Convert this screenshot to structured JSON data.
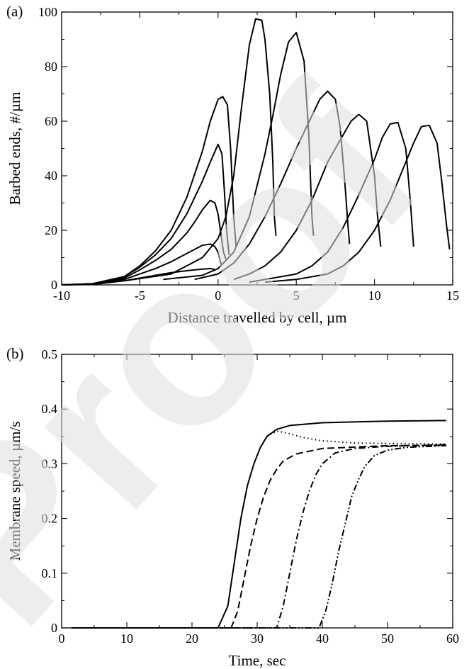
{
  "watermark": {
    "text": "Proof",
    "color": "#e0e0e0"
  },
  "chart_data": [
    {
      "panel_label": "(a)",
      "type": "line",
      "title": "",
      "xlabel": "Distance travelled by cell, µm",
      "ylabel": "Barbed ends, #/µm",
      "xlim": [
        -10,
        15
      ],
      "ylim": [
        0,
        100
      ],
      "xticks": [
        -10,
        -5,
        0,
        5,
        10,
        15
      ],
      "yticks": [
        0,
        20,
        40,
        60,
        80,
        100
      ],
      "line_color": "#000000",
      "series": [
        {
          "x": [
            -10,
            -8,
            -6,
            -4,
            -3,
            -2,
            -1,
            -0.5,
            -0.3,
            -0.2
          ],
          "y": [
            0,
            0.2,
            1.5,
            3.5,
            4.5,
            5.2,
            5.8,
            6,
            5.8,
            5.2
          ]
        },
        {
          "x": [
            -10,
            -8,
            -6,
            -5,
            -4,
            -3,
            -2,
            -1.5,
            -1,
            -0.5,
            -0.2,
            0,
            0.1,
            0.2
          ],
          "y": [
            0,
            0.3,
            2,
            4,
            6,
            8.5,
            11.5,
            13,
            14.5,
            15,
            14,
            12,
            9.5,
            7.5
          ]
        },
        {
          "x": [
            -10,
            -8,
            -6,
            -5,
            -4,
            -3,
            -2,
            -1.5,
            -1,
            -0.5,
            -0.2,
            0,
            0.2,
            0.35,
            0.5
          ],
          "y": [
            0,
            0.4,
            2.5,
            5.5,
            9,
            13,
            19,
            23,
            27.5,
            31,
            30,
            26,
            18,
            12,
            9.5
          ]
        },
        {
          "x": [
            -10,
            -8,
            -6,
            -5,
            -4,
            -3,
            -2,
            -1,
            -0.5,
            0,
            0.25,
            0.4,
            0.55,
            0.7
          ],
          "y": [
            0,
            0.4,
            3,
            6.5,
            11,
            17,
            26,
            38,
            45,
            51.5,
            48,
            35,
            20,
            11
          ]
        },
        {
          "x": [
            -10,
            -8,
            -6,
            -5,
            -4,
            -3,
            -2,
            -1,
            -0.5,
            0,
            0.3,
            0.6,
            0.8,
            1,
            1.15
          ],
          "y": [
            0,
            0.5,
            3,
            7,
            12.5,
            20,
            32,
            49,
            60,
            68,
            69,
            66,
            50,
            25,
            14
          ]
        },
        {
          "x": [
            -6,
            -3,
            -1,
            0,
            0.5,
            1,
            1.5,
            2,
            2.4,
            2.8,
            3,
            3.3,
            3.5,
            3.6,
            3.7
          ],
          "y": [
            1.5,
            4,
            10,
            17,
            25,
            40,
            65,
            88,
            97.5,
            97,
            90,
            70,
            45,
            25,
            18
          ]
        },
        {
          "x": [
            -3.5,
            -1,
            0,
            1,
            2,
            3,
            3.5,
            4,
            4.5,
            5,
            5.5,
            5.8,
            6,
            6.1
          ],
          "y": [
            2,
            3.5,
            6,
            12,
            25,
            48,
            62,
            77,
            89,
            92.5,
            82,
            55,
            25,
            18
          ]
        },
        {
          "x": [
            -1.5,
            0,
            1,
            2,
            3,
            4,
            5,
            6,
            6.5,
            7,
            7.5,
            7.8,
            8.1,
            8.3,
            8.4
          ],
          "y": [
            2,
            4,
            8,
            15,
            25,
            37,
            50,
            62,
            68,
            71,
            68,
            58,
            38,
            22,
            15
          ]
        },
        {
          "x": [
            1,
            2,
            3,
            4,
            5,
            6,
            7,
            8,
            8.5,
            9,
            9.5,
            10,
            10.2,
            10.4
          ],
          "y": [
            2,
            4,
            7,
            12,
            20,
            31,
            45,
            55,
            60,
            62.5,
            60,
            40,
            25,
            14
          ]
        },
        {
          "x": [
            2,
            3,
            5,
            6,
            7,
            8,
            9,
            10,
            10.5,
            11,
            11.5,
            12,
            12.3,
            12.5
          ],
          "y": [
            1,
            2,
            4,
            7,
            12,
            21,
            33,
            46,
            54,
            59,
            59.5,
            50,
            30,
            14
          ]
        },
        {
          "x": [
            3,
            5,
            7,
            8,
            9,
            10,
            11,
            12,
            12.5,
            13,
            13.5,
            14,
            14.3,
            14.6,
            14.8
          ],
          "y": [
            1,
            2,
            4,
            7,
            12,
            20,
            31,
            45,
            52,
            58,
            58.5,
            52,
            38,
            22,
            13
          ]
        }
      ]
    },
    {
      "panel_label": "(b)",
      "type": "line",
      "title": "",
      "xlabel": "Time, sec",
      "ylabel": "Membrane speed, µm/s",
      "xlim": [
        0,
        60
      ],
      "ylim": [
        0,
        0.5
      ],
      "xticks": [
        0,
        10,
        20,
        30,
        40,
        50,
        60
      ],
      "yticks": [
        0,
        0.1,
        0.2,
        0.3,
        0.4,
        0.5
      ],
      "line_color": "#000000",
      "series": [
        {
          "style": "solid",
          "x": [
            1.5,
            24,
            25.5,
            26.5,
            27.5,
            28.5,
            29.5,
            30.5,
            31.5,
            33,
            35,
            40,
            50,
            59
          ],
          "y": [
            0,
            0,
            0.04,
            0.12,
            0.2,
            0.26,
            0.3,
            0.33,
            0.35,
            0.363,
            0.37,
            0.375,
            0.378,
            0.379
          ]
        },
        {
          "style": "dotted",
          "x": [
            31.5,
            33,
            35,
            37,
            40,
            45,
            50,
            59
          ],
          "y": [
            0.35,
            0.36,
            0.355,
            0.348,
            0.342,
            0.338,
            0.337,
            0.336
          ]
        },
        {
          "style": "dashed",
          "x": [
            1.5,
            26,
            27,
            28,
            29,
            30,
            31,
            32,
            33,
            34,
            36,
            40,
            50,
            59
          ],
          "y": [
            0,
            0,
            0.03,
            0.09,
            0.15,
            0.2,
            0.24,
            0.27,
            0.29,
            0.305,
            0.318,
            0.328,
            0.333,
            0.334
          ]
        },
        {
          "style": "dashdot",
          "x": [
            1.5,
            33,
            34,
            35,
            36,
            37,
            38,
            39,
            40,
            42,
            45,
            50,
            59
          ],
          "y": [
            0,
            0,
            0.04,
            0.1,
            0.16,
            0.21,
            0.25,
            0.28,
            0.3,
            0.32,
            0.328,
            0.332,
            0.335
          ]
        },
        {
          "style": "dashdotdot",
          "x": [
            1.5,
            39.5,
            40.5,
            41.5,
            42.5,
            43.5,
            44.5,
            45.5,
            46.5,
            48,
            50,
            53,
            59
          ],
          "y": [
            0,
            0,
            0.03,
            0.08,
            0.14,
            0.19,
            0.24,
            0.27,
            0.295,
            0.315,
            0.325,
            0.33,
            0.333
          ]
        }
      ]
    }
  ]
}
